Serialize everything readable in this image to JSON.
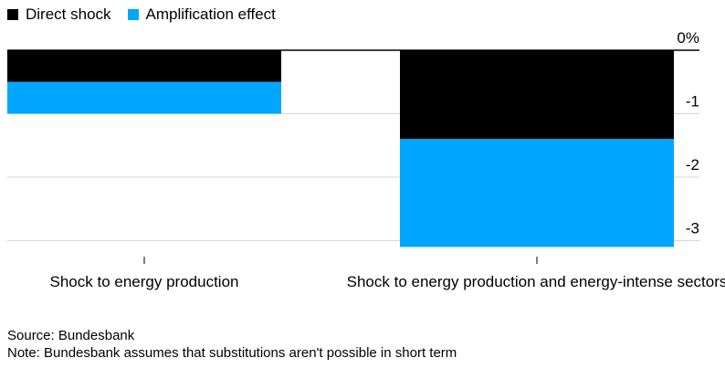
{
  "chart_data": {
    "type": "bar",
    "stacked": true,
    "categories": [
      "Shock to energy production",
      "Shock to energy production and energy-intense sectors"
    ],
    "series": [
      {
        "name": "Direct shock",
        "color": "#000000",
        "values": [
          -0.5,
          -1.4
        ]
      },
      {
        "name": "Amplification effect",
        "color": "#00a6ff",
        "values": [
          -0.5,
          -1.7
        ]
      }
    ],
    "ylim": [
      -3.1,
      0
    ],
    "yticks": [
      0,
      -1,
      -2,
      -3
    ],
    "ytick_labels": [
      "0%",
      "-1",
      "-2",
      "-3"
    ],
    "grid": true,
    "legend": "top-left"
  },
  "footer": {
    "source": "Source: Bundesbank",
    "note": "Note: Bundesbank assumes that substitutions aren't possible in short term"
  }
}
